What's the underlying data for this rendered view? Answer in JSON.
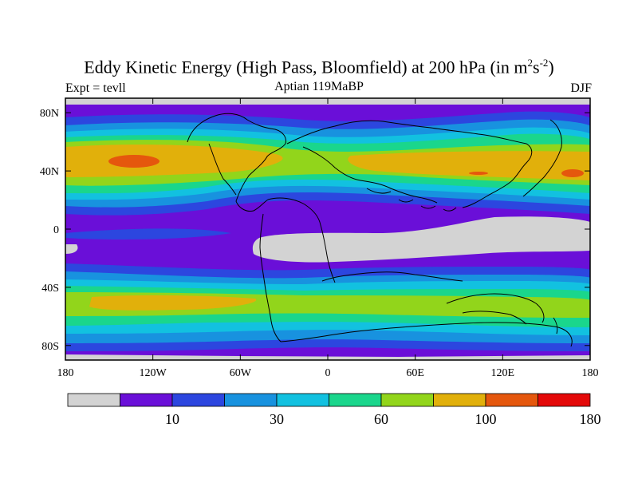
{
  "figure": {
    "title_main": "Eddy Kinetic Energy (High Pass, Bloomfield) at 200 hPa (in m",
    "title_sup1": "2",
    "title_mid": "s",
    "title_sup2": "-2",
    "title_end": ")",
    "left_string": "Expt = tevll",
    "center_string": "Aptian  119MaBP",
    "right_string": "DJF"
  },
  "map": {
    "projection": "cylindrical-equidistant",
    "lon_range": [
      -180,
      180
    ],
    "lat_range": [
      -90,
      90
    ],
    "lat_ticks": [
      {
        "value": 80,
        "label": "80N"
      },
      {
        "value": 40,
        "label": "40N"
      },
      {
        "value": 0,
        "label": "0"
      },
      {
        "value": -40,
        "label": "40S"
      },
      {
        "value": -80,
        "label": "80S"
      }
    ],
    "lon_ticks": [
      {
        "value": -180,
        "label": "180"
      },
      {
        "value": -120,
        "label": "120W"
      },
      {
        "value": -60,
        "label": "60W"
      },
      {
        "value": 0,
        "label": "0"
      },
      {
        "value": 60,
        "label": "60E"
      },
      {
        "value": 120,
        "label": "120E"
      },
      {
        "value": 180,
        "label": "180"
      }
    ]
  },
  "colorbar": {
    "colors": [
      "#d3d3d3",
      "#6a0fd8",
      "#2c46df",
      "#1892df",
      "#12c1e0",
      "#1ad68c",
      "#92d51b",
      "#e1b00b",
      "#e5570d",
      "#e40909"
    ],
    "labels": [
      {
        "after_bin": 1,
        "text": "10"
      },
      {
        "after_bin": 3,
        "text": "30"
      },
      {
        "after_bin": 5,
        "text": "60"
      },
      {
        "after_bin": 7,
        "text": "100"
      },
      {
        "after_bin": 9,
        "text": "180"
      }
    ]
  }
}
